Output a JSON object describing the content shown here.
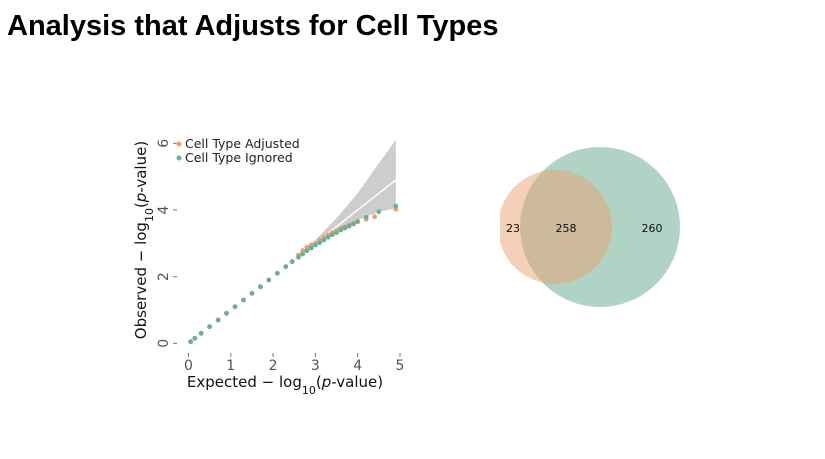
{
  "slide": {
    "title": "Analysis that Adjusts for Cell Types"
  },
  "colors": {
    "adjusted": "#e8a170",
    "ignored": "#6fae96",
    "band": "#cdcdcd",
    "diagonal": "#ffffff"
  },
  "chart_data": [
    {
      "type": "scatter",
      "xlabel": "Expected  − log10(p-value)",
      "ylabel": "Observed  − log10(p-value)",
      "xlim": [
        -0.2,
        5
      ],
      "ylim": [
        -0.2,
        6.4
      ],
      "xticks": [
        "0",
        "1",
        "2",
        "3",
        "4",
        "5"
      ],
      "yticks": [
        "0",
        "2",
        "4",
        "6"
      ],
      "legend": {
        "position": "top-left"
      },
      "confidence_band": {
        "x": [
          0,
          1,
          2,
          2.5,
          3,
          3.5,
          4,
          4.5,
          4.9
        ],
        "lower": [
          0,
          1,
          2,
          2.48,
          2.95,
          3.35,
          3.7,
          3.95,
          4.05
        ],
        "upper": [
          0,
          1,
          2,
          2.55,
          3.1,
          3.75,
          4.5,
          5.4,
          6.1
        ]
      },
      "series": [
        {
          "name": "Cell Type Adjusted",
          "color": "#e8a170",
          "x": [
            0.05,
            0.15,
            0.3,
            0.5,
            0.7,
            0.9,
            1.1,
            1.3,
            1.5,
            1.7,
            1.9,
            2.1,
            2.3,
            2.45,
            2.6,
            2.7,
            2.8,
            2.9,
            3.0,
            3.1,
            3.2,
            3.3,
            3.4,
            3.5,
            3.6,
            3.7,
            3.8,
            3.9,
            4.0,
            4.2,
            4.4,
            4.9
          ],
          "y": [
            0.05,
            0.15,
            0.3,
            0.5,
            0.7,
            0.9,
            1.1,
            1.3,
            1.5,
            1.7,
            1.9,
            2.1,
            2.3,
            2.45,
            2.65,
            2.78,
            2.88,
            2.95,
            3.0,
            3.1,
            3.18,
            3.25,
            3.32,
            3.38,
            3.45,
            3.5,
            3.55,
            3.6,
            3.65,
            3.72,
            3.8,
            4.02
          ]
        },
        {
          "name": "Cell Type Ignored",
          "color": "#6fae96",
          "x": [
            0.05,
            0.15,
            0.3,
            0.5,
            0.7,
            0.9,
            1.1,
            1.3,
            1.5,
            1.7,
            1.9,
            2.1,
            2.3,
            2.45,
            2.6,
            2.7,
            2.8,
            2.9,
            3.0,
            3.1,
            3.2,
            3.3,
            3.4,
            3.5,
            3.6,
            3.7,
            3.8,
            3.9,
            4.0,
            4.2,
            4.5,
            4.9
          ],
          "y": [
            0.05,
            0.15,
            0.3,
            0.5,
            0.7,
            0.9,
            1.1,
            1.3,
            1.5,
            1.7,
            1.9,
            2.1,
            2.3,
            2.45,
            2.58,
            2.68,
            2.78,
            2.86,
            2.95,
            3.02,
            3.1,
            3.18,
            3.26,
            3.32,
            3.4,
            3.46,
            3.52,
            3.58,
            3.65,
            3.78,
            3.95,
            4.12
          ]
        }
      ]
    },
    {
      "type": "venn",
      "sets": [
        {
          "name": "Cell Type Adjusted",
          "color": "#e8a170",
          "only": "23"
        },
        {
          "name": "Cell Type Ignored",
          "color": "#6fae96",
          "only": "260"
        }
      ],
      "intersection": "258"
    }
  ]
}
